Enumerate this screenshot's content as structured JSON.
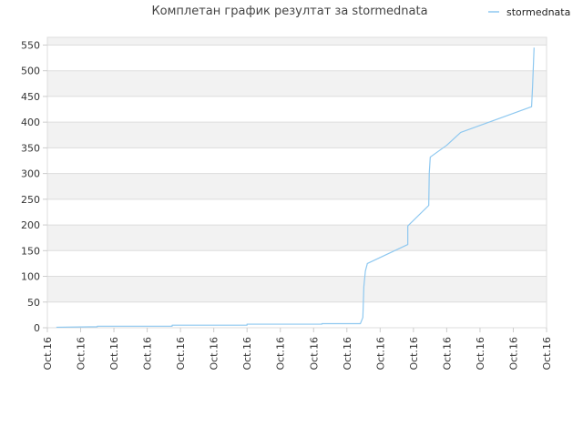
{
  "chart_data": {
    "type": "line",
    "title": "Комплетан график резултат за stormednata",
    "xlabel": "",
    "ylabel": "",
    "x_tick_labels": [
      "Oct.16",
      "Oct.16",
      "Oct.16",
      "Oct.16",
      "Oct.16",
      "Oct.16",
      "Oct.16",
      "Oct.16",
      "Oct.16",
      "Oct.16",
      "Oct.16",
      "Oct.16",
      "Oct.16",
      "Oct.16",
      "Oct.16",
      "Oct.16"
    ],
    "y_ticks": [
      0,
      50,
      100,
      150,
      200,
      250,
      300,
      350,
      400,
      450,
      500,
      550
    ],
    "ylim": [
      0,
      565
    ],
    "xlim": [
      0,
      1
    ],
    "grid": true,
    "legend_position": "top-right",
    "series": [
      {
        "name": "stormednata",
        "color": "#8ec8f0",
        "points": [
          {
            "x": 0.018,
            "y": 1
          },
          {
            "x": 0.1,
            "y": 2
          },
          {
            "x": 0.1,
            "y": 3
          },
          {
            "x": 0.25,
            "y": 3
          },
          {
            "x": 0.25,
            "y": 5
          },
          {
            "x": 0.4,
            "y": 5
          },
          {
            "x": 0.4,
            "y": 7
          },
          {
            "x": 0.55,
            "y": 7
          },
          {
            "x": 0.55,
            "y": 8
          },
          {
            "x": 0.627,
            "y": 8
          },
          {
            "x": 0.632,
            "y": 20
          },
          {
            "x": 0.634,
            "y": 80
          },
          {
            "x": 0.637,
            "y": 110
          },
          {
            "x": 0.641,
            "y": 125
          },
          {
            "x": 0.722,
            "y": 162
          },
          {
            "x": 0.722,
            "y": 198
          },
          {
            "x": 0.764,
            "y": 238
          },
          {
            "x": 0.765,
            "y": 300
          },
          {
            "x": 0.767,
            "y": 332
          },
          {
            "x": 0.8,
            "y": 355
          },
          {
            "x": 0.828,
            "y": 380
          },
          {
            "x": 0.97,
            "y": 430
          },
          {
            "x": 0.972,
            "y": 470
          },
          {
            "x": 0.974,
            "y": 520
          },
          {
            "x": 0.975,
            "y": 545
          }
        ]
      }
    ]
  },
  "colors": {
    "band": "#f2f2f2",
    "gridline": "#dddddd",
    "axis": "#cccccc",
    "line": "#8ec8f0"
  }
}
